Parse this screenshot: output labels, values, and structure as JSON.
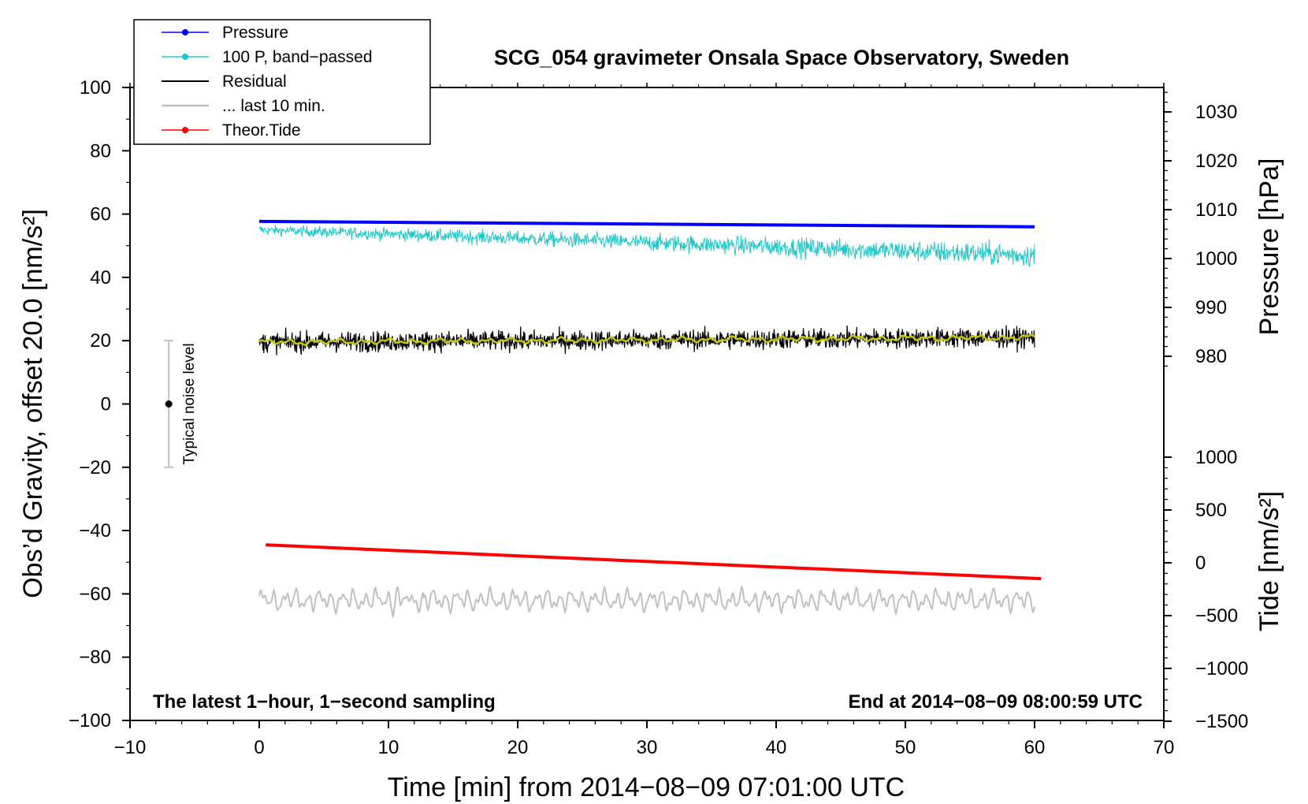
{
  "chart_data": {
    "type": "line",
    "title": "SCG_054 gravimeter Onsala Space Observatory, Sweden",
    "xlabel": "Time [min] from 2014−08−09 07:01:00 UTC",
    "ylabel_left": "Obs’d Gravity, offset 20.0 [nm/s²]",
    "ylabel_right_top": "Pressure [hPa]",
    "ylabel_right_bottom": "Tide [nm/s²]",
    "xlim": [
      -10,
      70
    ],
    "ylim": [
      -100,
      100
    ],
    "x_ticks": [
      "−10",
      "0",
      "10",
      "20",
      "30",
      "40",
      "50",
      "60",
      "70"
    ],
    "y_ticks": [
      "−100",
      "−80",
      "−60",
      "−40",
      "−20",
      "0",
      "20",
      "40",
      "60",
      "80",
      "100"
    ],
    "pressure_axis": {
      "ticks": [
        "1030",
        "1020",
        "1010",
        "1000",
        "990",
        "980"
      ]
    },
    "tide_axis": {
      "ticks": [
        "1000",
        "500",
        "0",
        "−500",
        "−1000",
        "−1500"
      ]
    },
    "annotation_left": "The latest 1−hour, 1−second sampling",
    "annotation_right": "End at 2014−08−09 08:00:59 UTC",
    "noise_label": "Typical noise level",
    "noise_bar": {
      "x": -7,
      "center": 0,
      "low": -20,
      "high": 20
    },
    "legend": [
      {
        "label": "Pressure",
        "color": "#0000ff",
        "marker": true
      },
      {
        "label": "100 P, band−passed",
        "color": "#1ec8c8",
        "marker": true
      },
      {
        "label": "Residual",
        "color": "#000000",
        "marker": false
      },
      {
        "label": "... last 10 min.",
        "color": "#c0c0c0",
        "marker": false
      },
      {
        "label": "Theor.Tide",
        "color": "#ff0000",
        "marker": true
      }
    ],
    "series": [
      {
        "name": "Pressure",
        "color": "#0000ff",
        "hpa_start": 1007.6,
        "hpa_end": 1006.5,
        "x_start": 0,
        "x_end": 60
      },
      {
        "name": "100 P, band−passed",
        "color": "#1ec8c8",
        "y_start": 55,
        "y_end": 47,
        "amplitude": 3.5,
        "x_start": 0,
        "x_end": 60
      },
      {
        "name": "Residual",
        "color": "#000000",
        "y_start": 19.5,
        "y_end": 21,
        "amplitude": 4,
        "x_start": 0,
        "x_end": 60
      },
      {
        "name": "Residual smoothed",
        "color": "#c8c800",
        "y_start": 19.5,
        "y_end": 21,
        "amplitude": 1,
        "x_start": 0,
        "x_end": 60
      },
      {
        "name": "... last 10 min.",
        "color": "#c0c0c0",
        "y_center": -62,
        "amplitude": 3.5,
        "x_start": 0,
        "x_end": 60
      },
      {
        "name": "Theor.Tide",
        "color": "#ff0000",
        "tide_start": 170,
        "tide_end": -150,
        "x_start": 0.5,
        "x_end": 60.5
      }
    ],
    "colors": {
      "pressure": "#0000ff",
      "bandpassed": "#1ec8c8",
      "residual": "#000000",
      "smoothed": "#c8c800",
      "last10": "#c0c0c0",
      "tide": "#ff0000",
      "noise_bar": "#c0c0c0"
    }
  }
}
